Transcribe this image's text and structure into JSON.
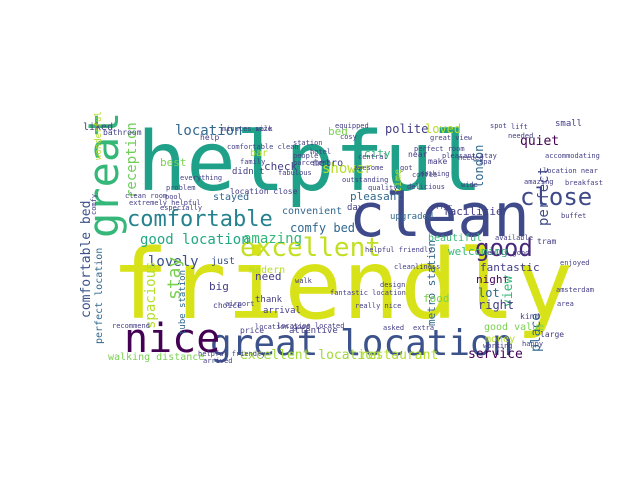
{
  "words": [
    {
      "text": "friendly",
      "color": "#d8e219"
    },
    {
      "text": "helpful",
      "color": "#1fa088"
    },
    {
      "text": "clean",
      "color": "#3e4a89"
    },
    {
      "text": "great location",
      "color": "#3b528b"
    },
    {
      "text": "nice",
      "color": "#440154"
    },
    {
      "text": "great",
      "color": "#35b779"
    },
    {
      "text": "comfortable",
      "color": "#26828e"
    },
    {
      "text": "excellent",
      "color": "#c2df23"
    },
    {
      "text": "good",
      "color": "#482878"
    },
    {
      "text": "location",
      "color": "#31688e"
    },
    {
      "text": "close",
      "color": "#3e4989"
    },
    {
      "text": "good location",
      "color": "#22a884"
    },
    {
      "text": "excellent location",
      "color": "#a0da39"
    },
    {
      "text": "restaurant",
      "color": "#b5de2b"
    },
    {
      "text": "service",
      "color": "#440154"
    },
    {
      "text": "reception",
      "color": "#6ece58"
    },
    {
      "text": "amazing",
      "color": "#35b779"
    },
    {
      "text": "lovely",
      "color": "#3b528b"
    },
    {
      "text": "loved",
      "color": "#b5de2b"
    },
    {
      "text": "quiet",
      "color": "#440154"
    },
    {
      "text": "perfect",
      "color": "#3e4989"
    },
    {
      "text": "comfy bed",
      "color": "#31688e"
    },
    {
      "text": "spacious",
      "color": "#b5de2b"
    },
    {
      "text": "stay",
      "color": "#7ad151"
    },
    {
      "text": "comfortable bed",
      "color": "#3b528b"
    },
    {
      "text": "fantastic",
      "color": "#433e85"
    },
    {
      "text": "city",
      "color": "#35b779"
    },
    {
      "text": "shower",
      "color": "#b5de2b"
    },
    {
      "text": "bed",
      "color": "#7ad151"
    },
    {
      "text": "polite",
      "color": "#433e85"
    },
    {
      "text": "london",
      "color": "#31688e"
    },
    {
      "text": "metro",
      "color": "#433e85"
    },
    {
      "text": "pleasant",
      "color": "#31688e"
    },
    {
      "text": "welcoming",
      "color": "#35b779"
    },
    {
      "text": "facilitie",
      "color": "#433e85"
    },
    {
      "text": "night",
      "color": "#440154"
    },
    {
      "text": "view",
      "color": "#35b779"
    },
    {
      "text": "lot",
      "color": "#31688e"
    },
    {
      "text": "right",
      "color": "#433e85"
    },
    {
      "text": "metro station",
      "color": "#31688e"
    },
    {
      "text": "walking distance",
      "color": "#7ad151"
    },
    {
      "text": "perfect location",
      "color": "#31688e"
    },
    {
      "text": "need",
      "color": "#433e85"
    },
    {
      "text": "modern",
      "color": "#b5de2b"
    },
    {
      "text": "big",
      "color": "#433e85"
    },
    {
      "text": "place",
      "color": "#31688e"
    },
    {
      "text": "good value",
      "color": "#7ad151"
    },
    {
      "text": "money",
      "color": "#b5de2b"
    },
    {
      "text": "beautiful",
      "color": "#35b779"
    },
    {
      "text": "just",
      "color": "#3b528b"
    },
    {
      "text": "check",
      "color": "#433e85"
    },
    {
      "text": "liked",
      "color": "#433e85"
    },
    {
      "text": "best",
      "color": "#7ad151"
    },
    {
      "text": "stayed",
      "color": "#31688e"
    },
    {
      "text": "convenient",
      "color": "#31688e"
    },
    {
      "text": "time",
      "color": "#b5de2b"
    },
    {
      "text": "day",
      "color": "#433e85"
    },
    {
      "text": "upgraded",
      "color": "#31688e"
    },
    {
      "text": "food",
      "color": "#7ad151"
    },
    {
      "text": "small",
      "color": "#433e85"
    },
    {
      "text": "tube station",
      "color": "#31688e"
    },
    {
      "text": "attentive",
      "color": "#433e85"
    },
    {
      "text": "thank",
      "color": "#433e85"
    },
    {
      "text": "arrival",
      "color": "#433e85"
    },
    {
      "text": "kind",
      "color": "#433e85"
    },
    {
      "text": "large",
      "color": "#433e85"
    },
    {
      "text": "bar",
      "color": "#b5de2b"
    },
    {
      "text": "didn t",
      "color": "#433e85"
    },
    {
      "text": "wonderful",
      "color": "#b5de2b"
    },
    {
      "text": "location close",
      "color": "#433e85"
    },
    {
      "text": "choice",
      "color": "#433e85"
    },
    {
      "text": "price",
      "color": "#433e85"
    },
    {
      "text": "near",
      "color": "#433e85"
    },
    {
      "text": "make",
      "color": "#433e85"
    },
    {
      "text": "help",
      "color": "#433e85"
    },
    {
      "text": "bathroom",
      "color": "#433e85"
    },
    {
      "text": "great view",
      "color": "#433e85"
    },
    {
      "text": "central",
      "color": "#433e85"
    },
    {
      "text": "awesome",
      "color": "#433e85"
    },
    {
      "text": "nothing",
      "color": "#433e85"
    },
    {
      "text": "size",
      "color": "#433e85"
    },
    {
      "text": "hotel",
      "color": "#433e85"
    },
    {
      "text": "people",
      "color": "#433e85"
    },
    {
      "text": "barcelona",
      "color": "#433e85"
    },
    {
      "text": "spa",
      "color": "#433e85"
    },
    {
      "text": "equipped",
      "color": "#433e85"
    },
    {
      "text": "fabulous",
      "color": "#433e85"
    },
    {
      "text": "quality",
      "color": "#433e85"
    },
    {
      "text": "outstanding",
      "color": "#433e85"
    },
    {
      "text": "problem",
      "color": "#433e85"
    },
    {
      "text": "pool",
      "color": "#433e85"
    },
    {
      "text": "extremely helpful",
      "color": "#433e85"
    },
    {
      "text": "location near",
      "color": "#433e85"
    },
    {
      "text": "everything",
      "color": "#433e85"
    },
    {
      "text": "needed",
      "color": "#433e85"
    },
    {
      "text": "breakfast",
      "color": "#433e85"
    },
    {
      "text": "buffet",
      "color": "#433e85"
    },
    {
      "text": "station",
      "color": "#433e85"
    },
    {
      "text": "airport",
      "color": "#433e85"
    },
    {
      "text": "tram",
      "color": "#433e85"
    },
    {
      "text": "helpful friendly",
      "color": "#433e85"
    },
    {
      "text": "cleanliness",
      "color": "#433e85"
    },
    {
      "text": "really good",
      "color": "#433e85"
    },
    {
      "text": "available",
      "color": "#433e85"
    },
    {
      "text": "design",
      "color": "#433e85"
    },
    {
      "text": "enjoyed",
      "color": "#433e85"
    },
    {
      "text": "fantastic location",
      "color": "#433e85"
    },
    {
      "text": "really nice",
      "color": "#433e85"
    },
    {
      "text": "asked",
      "color": "#433e85"
    },
    {
      "text": "extra",
      "color": "#433e85"
    },
    {
      "text": "location good",
      "color": "#433e85"
    },
    {
      "text": "location located",
      "color": "#433e85"
    },
    {
      "text": "recommend",
      "color": "#433e85"
    },
    {
      "text": "working",
      "color": "#433e85"
    },
    {
      "text": "happy",
      "color": "#433e85"
    },
    {
      "text": "amsterdam",
      "color": "#433e85"
    },
    {
      "text": "area",
      "color": "#433e85"
    },
    {
      "text": "clean room",
      "color": "#433e85"
    },
    {
      "text": "helpful friendly",
      "color": "#433e85"
    },
    {
      "text": "arrived",
      "color": "#433e85"
    },
    {
      "text": "minutes walk",
      "color": "#433e85"
    },
    {
      "text": "comfortable clean",
      "color": "#433e85"
    },
    {
      "text": "family",
      "color": "#433e85"
    },
    {
      "text": "walk",
      "color": "#433e85"
    },
    {
      "text": "got",
      "color": "#433e85"
    },
    {
      "text": "coffee",
      "color": "#433e85"
    },
    {
      "text": "needed",
      "color": "#433e85"
    },
    {
      "text": "offer",
      "color": "#433e85"
    },
    {
      "text": "amazing",
      "color": "#433e85"
    },
    {
      "text": "spot",
      "color": "#433e85"
    },
    {
      "text": "lift",
      "color": "#433e85"
    },
    {
      "text": "accommodating",
      "color": "#433e85"
    },
    {
      "text": "wide",
      "color": "#433e85"
    },
    {
      "text": "delicious",
      "color": "#433e85"
    },
    {
      "text": "pleasant stay",
      "color": "#433e85"
    },
    {
      "text": "perfect room",
      "color": "#433e85"
    },
    {
      "text": "cosy",
      "color": "#433e85"
    },
    {
      "text": "comfy",
      "color": "#433e85"
    },
    {
      "text": "especially",
      "color": "#433e85"
    }
  ]
}
